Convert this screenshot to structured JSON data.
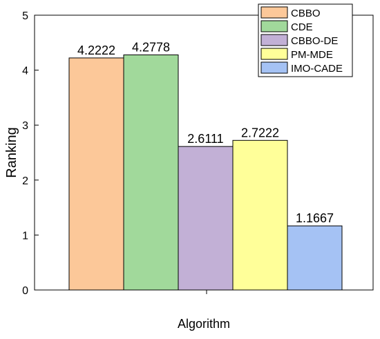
{
  "chart_data": {
    "type": "bar",
    "title": "",
    "xlabel": "Algorithm",
    "ylabel": "Ranking",
    "ylim": [
      0,
      5
    ],
    "yticks": [
      0,
      1,
      2,
      3,
      4,
      5
    ],
    "grid": false,
    "legend_position": "top-right",
    "series": [
      {
        "name": "CBBO",
        "value": 4.2222,
        "label": "4.2222",
        "color": "#FCC899"
      },
      {
        "name": "CDE",
        "value": 4.2778,
        "label": "4.2778",
        "color": "#A1D99B"
      },
      {
        "name": "CBBO-DE",
        "value": 2.6111,
        "label": "2.6111",
        "color": "#C2B0D6"
      },
      {
        "name": "PM-MDE",
        "value": 2.7222,
        "label": "2.7222",
        "color": "#FFFF99"
      },
      {
        "name": "IMO-CADE",
        "value": 1.1667,
        "label": "1.1667",
        "color": "#A5C2F4"
      }
    ]
  }
}
